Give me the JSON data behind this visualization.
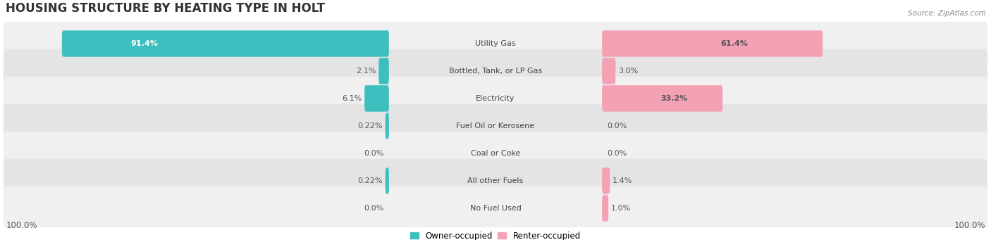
{
  "title": "HOUSING STRUCTURE BY HEATING TYPE IN HOLT",
  "source": "Source: ZipAtlas.com",
  "categories": [
    "Utility Gas",
    "Bottled, Tank, or LP Gas",
    "Electricity",
    "Fuel Oil or Kerosene",
    "Coal or Coke",
    "All other Fuels",
    "No Fuel Used"
  ],
  "owner_values": [
    91.4,
    2.1,
    6.1,
    0.22,
    0.0,
    0.22,
    0.0
  ],
  "renter_values": [
    61.4,
    3.0,
    33.2,
    0.0,
    0.0,
    1.4,
    1.0
  ],
  "owner_color": "#3bbfbf",
  "renter_color": "#f4a0b5",
  "owner_label": "Owner-occupied",
  "renter_label": "Renter-occupied",
  "row_bg_colors": [
    "#f0f0f0",
    "#e4e4e4"
  ],
  "max_value": 100.0,
  "left_label": "100.0%",
  "right_label": "100.0%",
  "title_fontsize": 12,
  "bar_value_fontsize": 8,
  "cat_label_fontsize": 8,
  "legend_fontsize": 8.5
}
